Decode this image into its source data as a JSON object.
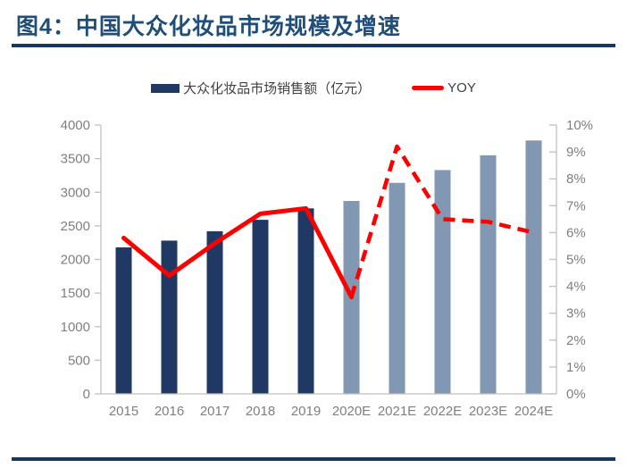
{
  "header": {
    "title": "图4：中国大众化妆品市场规模及增速"
  },
  "legend": {
    "bar_label": "大众化妆品市场销售额（亿元）",
    "line_label": "YOY"
  },
  "colors": {
    "title_text": "#1F4E79",
    "rule": "#17375D",
    "bar_actual": "#1F3864",
    "bar_estimate": "#8297B2",
    "line": "#FF0000",
    "axis_line": "#BFBFBF",
    "axis_text": "#7F7F7F",
    "legend_text": "#404040"
  },
  "chart_data": {
    "type": "bar+line combo",
    "title": "中国大众化妆品市场规模及增速",
    "categories": [
      "2015",
      "2016",
      "2017",
      "2018",
      "2019",
      "2020E",
      "2021E",
      "2022E",
      "2023E",
      "2024E"
    ],
    "series": [
      {
        "name": "大众化妆品市场销售额（亿元）",
        "type": "bar",
        "axis": "left",
        "values": [
          2180,
          2280,
          2420,
          2590,
          2760,
          2870,
          3140,
          3330,
          3550,
          3770
        ],
        "estimate_start_index": 5
      },
      {
        "name": "YOY",
        "type": "line",
        "axis": "right",
        "unit": "%",
        "values": [
          5.8,
          4.4,
          5.6,
          6.7,
          6.9,
          3.6,
          9.2,
          6.5,
          6.4,
          6.0
        ],
        "solid_through_index": 5
      }
    ],
    "left_axis": {
      "min": 0,
      "max": 4000,
      "step": 500,
      "tick_labels": [
        "0",
        "500",
        "1000",
        "1500",
        "2000",
        "2500",
        "3000",
        "3500",
        "4000"
      ]
    },
    "right_axis": {
      "min": 0,
      "max": 10,
      "step": 1,
      "tick_labels": [
        "0%",
        "1%",
        "2%",
        "3%",
        "4%",
        "5%",
        "6%",
        "7%",
        "8%",
        "9%",
        "10%"
      ]
    },
    "grid": false,
    "legend_position": "top-center"
  }
}
